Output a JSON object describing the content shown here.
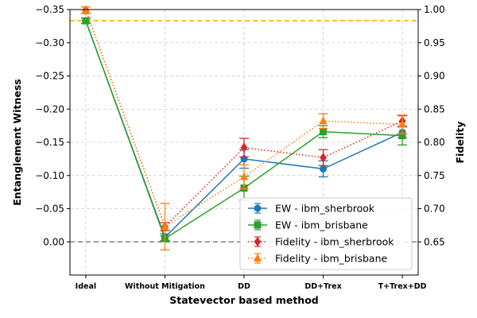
{
  "chart_data": {
    "type": "line",
    "categories": [
      "Ideal",
      "Without Mitigation",
      "DD",
      "DD+Trex",
      "T+Trex+DD"
    ],
    "xlabel": "Statevector based method",
    "ylabel": "Entanglement Witness",
    "y2label": "Fidelity",
    "ylim": [
      0.05,
      -0.35
    ],
    "y2lim": [
      0.6,
      1.0
    ],
    "yticks": [
      0.0,
      -0.05,
      -0.1,
      -0.15,
      -0.2,
      -0.25,
      -0.3,
      -0.35
    ],
    "ytick_labels": [
      "0.00",
      "−0.05",
      "−0.10",
      "−0.15",
      "−0.20",
      "−0.25",
      "−0.30",
      "−0.35"
    ],
    "y2ticks": [
      0.65,
      0.7,
      0.75,
      0.8,
      0.85,
      0.9,
      0.95,
      1.0
    ],
    "y2tick_labels": [
      "0.65",
      "0.70",
      "0.75",
      "0.80",
      "0.85",
      "0.90",
      "0.95",
      "1.00"
    ],
    "reference_lines": [
      {
        "axis": "left",
        "value": 0.0,
        "color": "#808080",
        "style": "dashed"
      },
      {
        "axis": "left",
        "value": -0.3333,
        "color": "#ffa500",
        "style": "dashed"
      }
    ],
    "grid": true,
    "legend_position": "lower-right",
    "series": [
      {
        "name": "EW - ibm_sherbrook",
        "axis": "left",
        "marker": "circle",
        "line": "solid",
        "color": "#1f77b4",
        "values": [
          -0.333,
          -0.007,
          -0.125,
          -0.11,
          -0.165
        ],
        "errors": [
          0.004,
          0.005,
          0.014,
          0.012,
          0.008
        ]
      },
      {
        "name": "EW - ibm_brisbane",
        "axis": "left",
        "marker": "square",
        "line": "solid",
        "color": "#2ca02c",
        "values": [
          -0.333,
          -0.005,
          -0.081,
          -0.166,
          -0.16
        ],
        "errors": [
          0.004,
          0.004,
          0.018,
          0.009,
          0.014
        ]
      },
      {
        "name": "Fidelity - ibm_sherbrook",
        "axis": "right",
        "marker": "diamond",
        "line": "dotted",
        "color": "#d62728",
        "errcolor": "#d62728",
        "values": [
          0.999,
          0.673,
          0.792,
          0.777,
          0.832
        ],
        "errors": [
          0.005,
          0.006,
          0.014,
          0.012,
          0.008
        ]
      },
      {
        "name": "Fidelity - ibm_brisbane",
        "axis": "right",
        "marker": "triangle",
        "line": "dotted",
        "color": "#ff7f0e",
        "errcolor": "#ff7f0e",
        "values": [
          0.999,
          0.673,
          0.748,
          0.832,
          0.827
        ],
        "errors": [
          0.005,
          0.035,
          0.018,
          0.011,
          0.014
        ]
      }
    ]
  }
}
